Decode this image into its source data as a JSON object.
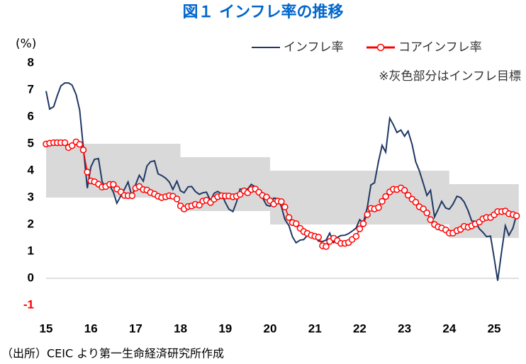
{
  "chart_data": {
    "type": "line",
    "title": "図１ インフレ率の推移",
    "y_label": "(%)",
    "annotation": "※灰色部分はインフレ目標",
    "source": "（出所）CEIC より第一生命経済研究所作成",
    "x": [
      15,
      15.08,
      15.17,
      15.25,
      15.33,
      15.42,
      15.5,
      15.58,
      15.67,
      15.75,
      15.83,
      15.92,
      16,
      16.08,
      16.17,
      16.25,
      16.33,
      16.42,
      16.5,
      16.58,
      16.67,
      16.75,
      16.83,
      16.92,
      17,
      17.08,
      17.17,
      17.25,
      17.33,
      17.42,
      17.5,
      17.58,
      17.67,
      17.75,
      17.83,
      17.92,
      18,
      18.08,
      18.17,
      18.25,
      18.33,
      18.42,
      18.5,
      18.58,
      18.67,
      18.75,
      18.83,
      18.92,
      19,
      19.08,
      19.17,
      19.25,
      19.33,
      19.42,
      19.5,
      19.58,
      19.67,
      19.75,
      19.83,
      19.92,
      20,
      20.08,
      20.17,
      20.25,
      20.33,
      20.42,
      20.5,
      20.58,
      20.67,
      20.75,
      20.83,
      20.92,
      21,
      21.08,
      21.17,
      21.25,
      21.33,
      21.42,
      21.5,
      21.58,
      21.67,
      21.75,
      21.83,
      21.92,
      22,
      22.08,
      22.17,
      22.25,
      22.33,
      22.42,
      22.5,
      22.58,
      22.67,
      22.75,
      22.83,
      22.92,
      23,
      23.08,
      23.17,
      23.25,
      23.33,
      23.42,
      23.5,
      23.58,
      23.67,
      23.75,
      23.83,
      23.92,
      24,
      24.08,
      24.17,
      24.25,
      24.33,
      24.42,
      24.5,
      24.58,
      24.67,
      24.75,
      24.83,
      24.92,
      25,
      25.08,
      25.17,
      25.25,
      25.33,
      25.42,
      25.5
    ],
    "series": [
      {
        "name": "インフレ率",
        "color": "#1f3864",
        "marker": false,
        "values": [
          6.96,
          6.29,
          6.38,
          6.79,
          7.15,
          7.26,
          7.26,
          7.18,
          6.83,
          6.25,
          4.89,
          3.35,
          4.14,
          4.42,
          4.45,
          3.6,
          3.33,
          3.45,
          3.21,
          2.79,
          3.07,
          3.31,
          3.58,
          3.02,
          3.49,
          3.83,
          3.61,
          4.17,
          4.33,
          4.37,
          3.88,
          3.82,
          3.72,
          3.58,
          3.3,
          3.61,
          3.25,
          3.18,
          3.4,
          3.41,
          3.23,
          3.12,
          3.18,
          3.2,
          2.88,
          3.16,
          3.23,
          3.13,
          2.82,
          2.57,
          2.48,
          2.83,
          3.32,
          3.28,
          3.32,
          3.49,
          3.39,
          3.13,
          3,
          2.72,
          2.68,
          2.98,
          2.96,
          2.67,
          2.19,
          1.96,
          1.54,
          1.32,
          1.42,
          1.44,
          1.59,
          1.68,
          1.55,
          1.38,
          1.37,
          1.42,
          1.68,
          1.33,
          1.52,
          1.59,
          1.6,
          1.66,
          1.75,
          1.87,
          2.18,
          2.06,
          2.64,
          3.47,
          3.55,
          4.35,
          4.94,
          4.69,
          5.95,
          5.71,
          5.42,
          5.51,
          5.28,
          5.47,
          4.97,
          4.33,
          4,
          3.52,
          3.08,
          3.27,
          2.28,
          2.56,
          2.86,
          2.61,
          2.57,
          2.75,
          3.05,
          3,
          2.84,
          2.51,
          2.13,
          2.12,
          1.84,
          1.71,
          1.55,
          1.57,
          0.76,
          -0.09,
          1.03,
          1.95,
          1.6,
          1.87,
          2.37
        ]
      },
      {
        "name": "コアインフレ率",
        "color": "#ff0000",
        "marker": true,
        "values": [
          4.99,
          5.02,
          5.04,
          5.04,
          5.04,
          5.04,
          4.86,
          4.93,
          5.07,
          4.98,
          4.77,
          3.95,
          3.62,
          3.59,
          3.5,
          3.39,
          3.41,
          3.49,
          3.49,
          3.32,
          3.21,
          3.08,
          3.07,
          3.07,
          3.35,
          3.41,
          3.3,
          3.28,
          3.19,
          3.13,
          3.05,
          3,
          3.03,
          3.07,
          3.05,
          2.95,
          2.69,
          2.58,
          2.67,
          2.69,
          2.75,
          2.72,
          2.87,
          2.9,
          2.82,
          2.94,
          3.03,
          3.07,
          3.06,
          3.06,
          3.03,
          3.05,
          3.12,
          3.25,
          3.18,
          3.3,
          3.32,
          3.2,
          3.08,
          3.02,
          2.88,
          2.76,
          2.87,
          2.85,
          2.65,
          2.26,
          2.07,
          2.03,
          1.86,
          1.74,
          1.67,
          1.6,
          1.56,
          1.53,
          1.21,
          1.18,
          1.37,
          1.49,
          1.4,
          1.3,
          1.3,
          1.33,
          1.44,
          1.56,
          1.84,
          2.03,
          2.37,
          2.6,
          2.58,
          2.63,
          2.86,
          3.04,
          3.21,
          3.31,
          3.3,
          3.36,
          3.27,
          3.09,
          2.94,
          2.83,
          2.66,
          2.58,
          2.43,
          2.18,
          2,
          1.91,
          1.87,
          1.8,
          1.68,
          1.68,
          1.77,
          1.82,
          1.93,
          1.9,
          1.95,
          2.02,
          2.09,
          2.21,
          2.26,
          2.26,
          2.36,
          2.48,
          2.48,
          2.5,
          2.4,
          2.37,
          2.32
        ]
      }
    ],
    "band": {
      "color": "#d9d9d9",
      "x": [
        15,
        18,
        18,
        20,
        20,
        24,
        24,
        25.55
      ],
      "lower": [
        3,
        3,
        2.5,
        2.5,
        2,
        2,
        1.5,
        1.5
      ],
      "upper": [
        5,
        5,
        4.5,
        4.5,
        4,
        4,
        3.5,
        3.5
      ]
    },
    "xlim": [
      15,
      25.55
    ],
    "xticks": [
      15,
      16,
      17,
      18,
      19,
      20,
      21,
      22,
      23,
      24,
      25
    ],
    "ylim": [
      -1,
      8
    ],
    "yticks": [
      -1,
      0,
      1,
      2,
      3,
      4,
      5,
      6,
      7,
      8
    ],
    "negative_tick_color": "#ff0000",
    "title_color": "#0066cc",
    "grid": false,
    "legend": "top-right"
  }
}
